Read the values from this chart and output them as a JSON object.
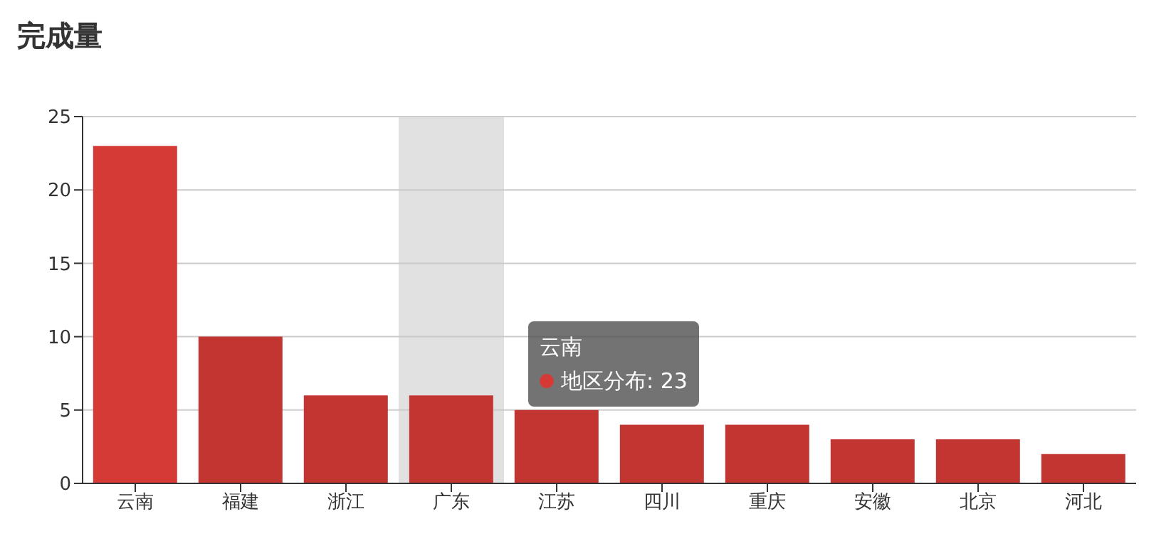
{
  "chart_data": {
    "type": "bar",
    "title": "完成量",
    "categories": [
      "云南",
      "福建",
      "浙江",
      "广东",
      "江苏",
      "四川",
      "重庆",
      "安徽",
      "北京",
      "河北"
    ],
    "values": [
      23,
      10,
      6,
      6,
      5,
      4,
      4,
      3,
      3,
      2
    ],
    "colors": [
      "#d63a36",
      "#c23531",
      "#c23531",
      "#c23531",
      "#c23531",
      "#c23531",
      "#c23531",
      "#c23531",
      "#c23531",
      "#c23531"
    ],
    "ylim": [
      0,
      25
    ],
    "yticks": [
      0,
      5,
      10,
      15,
      20,
      25
    ],
    "grid": "y",
    "bands": [
      {
        "axis": "x",
        "from": "广东",
        "to": "广东",
        "color": "#c8c8c8"
      }
    ],
    "annotations": [
      "云南",
      "地区分布: 23"
    ]
  }
}
